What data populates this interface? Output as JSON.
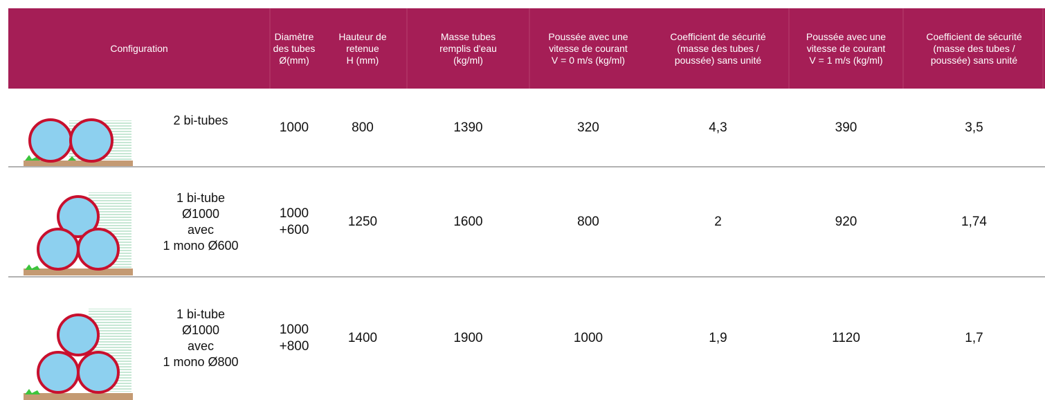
{
  "header": {
    "columns": [
      [
        "Configuration"
      ],
      [
        "Diamètre",
        "des tubes",
        "Ø(mm)"
      ],
      [
        "Hauteur de",
        "retenue",
        "H (mm)"
      ],
      [
        "Masse tubes",
        "remplis d'eau",
        "(kg/ml)"
      ],
      [
        "Poussée avec une",
        "vitesse de courant",
        "V = 0 m/s (kg/ml)"
      ],
      [
        "Coefficient de sécurité",
        "(masse des tubes /",
        "poussée) sans unité"
      ],
      [
        "Poussée avec une",
        "vitesse de courant",
        "V = 1 m/s (kg/ml)"
      ],
      [
        "Coefficient de sécurité",
        "(masse des tubes /",
        "poussée) sans unité"
      ]
    ]
  },
  "table": {
    "rows": [
      {
        "configuration": [
          "2 bi-tubes"
        ],
        "diameter": [
          "1000"
        ],
        "cells": [
          "800",
          "1390",
          "320",
          "4,3",
          "390",
          "3,5"
        ]
      },
      {
        "configuration": [
          "1 bi-tube",
          "Ø1000",
          "avec",
          "1 mono Ø600"
        ],
        "diameter": [
          "1000",
          "+600"
        ],
        "cells": [
          "1250",
          "1600",
          "800",
          "2",
          "920",
          "1,74"
        ]
      },
      {
        "configuration": [
          "1 bi-tube",
          "Ø1000",
          "avec",
          "1 mono Ø800"
        ],
        "diameter": [
          "1000",
          "+800"
        ],
        "cells": [
          "1400",
          "1900",
          "1000",
          "1,9",
          "1120",
          "1,7"
        ]
      }
    ]
  }
}
